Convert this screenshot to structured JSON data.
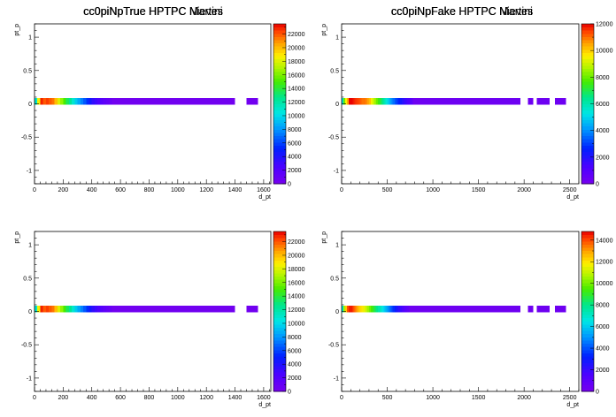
{
  "chart_data": [
    {
      "type": "heatmap",
      "title": "cc0piNpTrue HPTPC Nieves",
      "xlabel": "d_pt",
      "ylabel": "pt_p",
      "xlim": [
        0,
        1650
      ],
      "ylim": [
        -1.2,
        1.2
      ],
      "x_ticks": [
        "0",
        "200",
        "400",
        "600",
        "800",
        "1000",
        "1200",
        "1400",
        "1600"
      ],
      "y_ticks": [
        "-1",
        "-0.5",
        "0",
        "0.5",
        "1"
      ],
      "colorbar_max": 23500,
      "colorbar_ticks": [
        "0",
        "2000",
        "4000",
        "6000",
        "8000",
        "10000",
        "12000",
        "14000",
        "16000",
        "18000",
        "20000",
        "22000"
      ],
      "bin_width": 20,
      "y_band": [
        0,
        0.05
      ],
      "bins": [
        {
          "x": 0,
          "value": 11000
        },
        {
          "x": 20,
          "value": 18500
        },
        {
          "x": 40,
          "value": 23000
        },
        {
          "x": 60,
          "value": 22000
        },
        {
          "x": 80,
          "value": 22500
        },
        {
          "x": 100,
          "value": 22000
        },
        {
          "x": 120,
          "value": 21500
        },
        {
          "x": 140,
          "value": 20000
        },
        {
          "x": 160,
          "value": 18000
        },
        {
          "x": 180,
          "value": 16500
        },
        {
          "x": 200,
          "value": 15000
        },
        {
          "x": 220,
          "value": 13500
        },
        {
          "x": 240,
          "value": 12500
        },
        {
          "x": 260,
          "value": 11000
        },
        {
          "x": 280,
          "value": 9500
        },
        {
          "x": 300,
          "value": 8500
        },
        {
          "x": 320,
          "value": 7500
        },
        {
          "x": 340,
          "value": 6500
        },
        {
          "x": 360,
          "value": 5500
        },
        {
          "x": 380,
          "value": 4500
        },
        {
          "x": 400,
          "value": 3500
        },
        {
          "x": 420,
          "value": 3000
        },
        {
          "x": 440,
          "value": 2500
        },
        {
          "x": 460,
          "value": 2000
        },
        {
          "x": 480,
          "value": 1500
        },
        {
          "x": 500,
          "value": 1200
        },
        {
          "x": 520,
          "value": 900
        },
        {
          "x": 540,
          "x2": 1400,
          "value": 300
        },
        {
          "x": 1480,
          "x2": 1560,
          "value": 300
        }
      ]
    },
    {
      "type": "heatmap",
      "title": "cc0piNpFake HPTPC Nieves",
      "xlabel": "d_pt",
      "ylabel": "pt_p",
      "xlim": [
        0,
        2600
      ],
      "ylim": [
        -1.2,
        1.2
      ],
      "x_ticks": [
        "0",
        "500",
        "1000",
        "1500",
        "2000",
        "2500"
      ],
      "y_ticks": [
        "-1",
        "-0.5",
        "0",
        "0.5",
        "1"
      ],
      "colorbar_max": 12000,
      "colorbar_ticks": [
        "0",
        "2000",
        "4000",
        "6000",
        "8000",
        "10000",
        "12000"
      ],
      "bin_width": 20,
      "y_band": [
        0,
        0.05
      ],
      "bins": [
        {
          "x": 0,
          "value": 5500
        },
        {
          "x": 20,
          "value": 8000
        },
        {
          "x": 40,
          "value": 9500
        },
        {
          "x": 60,
          "value": 10500
        },
        {
          "x": 80,
          "value": 12000
        },
        {
          "x": 100,
          "value": 12000
        },
        {
          "x": 120,
          "value": 11800
        },
        {
          "x": 140,
          "value": 11600
        },
        {
          "x": 160,
          "value": 11500
        },
        {
          "x": 180,
          "value": 11400
        },
        {
          "x": 200,
          "value": 11200
        },
        {
          "x": 220,
          "value": 11000
        },
        {
          "x": 240,
          "value": 11000
        },
        {
          "x": 260,
          "value": 10800
        },
        {
          "x": 280,
          "value": 10500
        },
        {
          "x": 300,
          "value": 10200
        },
        {
          "x": 320,
          "value": 9500
        },
        {
          "x": 340,
          "value": 9000
        },
        {
          "x": 360,
          "value": 8500
        },
        {
          "x": 380,
          "value": 8000
        },
        {
          "x": 400,
          "value": 7500
        },
        {
          "x": 420,
          "value": 7000
        },
        {
          "x": 440,
          "value": 6500
        },
        {
          "x": 460,
          "value": 6000
        },
        {
          "x": 480,
          "value": 5500
        },
        {
          "x": 500,
          "value": 5000
        },
        {
          "x": 520,
          "value": 4500
        },
        {
          "x": 540,
          "value": 4000
        },
        {
          "x": 560,
          "value": 3600
        },
        {
          "x": 580,
          "value": 3200
        },
        {
          "x": 600,
          "value": 2900
        },
        {
          "x": 620,
          "value": 2600
        },
        {
          "x": 640,
          "value": 2300
        },
        {
          "x": 660,
          "value": 2000
        },
        {
          "x": 680,
          "value": 1700
        },
        {
          "x": 700,
          "value": 1500
        },
        {
          "x": 720,
          "value": 1300
        },
        {
          "x": 740,
          "value": 1100
        },
        {
          "x": 760,
          "value": 900
        },
        {
          "x": 780,
          "x2": 1960,
          "value": 300
        },
        {
          "x": 2040,
          "x2": 2100,
          "value": 300
        },
        {
          "x": 2140,
          "x2": 2280,
          "value": 300
        },
        {
          "x": 2340,
          "x2": 2460,
          "value": 300
        }
      ]
    },
    {
      "type": "heatmap",
      "title": "cc0piNpTrue HPTPC Martini",
      "xlabel": "d_pt",
      "ylabel": "pt_p",
      "xlim": [
        0,
        1650
      ],
      "ylim": [
        -1.2,
        1.2
      ],
      "x_ticks": [
        "0",
        "200",
        "400",
        "600",
        "800",
        "1000",
        "1200",
        "1400",
        "1600"
      ],
      "y_ticks": [
        "-1",
        "-0.5",
        "0",
        "0.5",
        "1"
      ],
      "colorbar_max": 23500,
      "colorbar_ticks": [
        "0",
        "2000",
        "4000",
        "6000",
        "8000",
        "10000",
        "12000",
        "14000",
        "16000",
        "18000",
        "20000",
        "22000"
      ],
      "bin_width": 20,
      "y_band": [
        0,
        0.05
      ],
      "bins": [
        {
          "x": 0,
          "value": 11000
        },
        {
          "x": 20,
          "value": 18500
        },
        {
          "x": 40,
          "value": 23000
        },
        {
          "x": 60,
          "value": 22000
        },
        {
          "x": 80,
          "value": 22500
        },
        {
          "x": 100,
          "value": 22000
        },
        {
          "x": 120,
          "value": 21500
        },
        {
          "x": 140,
          "value": 20000
        },
        {
          "x": 160,
          "value": 18000
        },
        {
          "x": 180,
          "value": 16500
        },
        {
          "x": 200,
          "value": 15000
        },
        {
          "x": 220,
          "value": 13500
        },
        {
          "x": 240,
          "value": 12500
        },
        {
          "x": 260,
          "value": 11000
        },
        {
          "x": 280,
          "value": 9500
        },
        {
          "x": 300,
          "value": 8500
        },
        {
          "x": 320,
          "value": 7500
        },
        {
          "x": 340,
          "value": 6500
        },
        {
          "x": 360,
          "value": 5500
        },
        {
          "x": 380,
          "value": 4500
        },
        {
          "x": 400,
          "value": 3500
        },
        {
          "x": 420,
          "value": 3000
        },
        {
          "x": 440,
          "value": 2500
        },
        {
          "x": 460,
          "value": 2000
        },
        {
          "x": 480,
          "value": 1500
        },
        {
          "x": 500,
          "value": 1200
        },
        {
          "x": 520,
          "value": 900
        },
        {
          "x": 540,
          "x2": 1400,
          "value": 300
        },
        {
          "x": 1480,
          "x2": 1560,
          "value": 300
        }
      ]
    },
    {
      "type": "heatmap",
      "title": "cc0piNpFake HPTPC Martini",
      "xlabel": "d_pt",
      "ylabel": "pt_p",
      "xlim": [
        0,
        2600
      ],
      "ylim": [
        -1.2,
        1.2
      ],
      "x_ticks": [
        "0",
        "500",
        "1000",
        "1500",
        "2000",
        "2500"
      ],
      "y_ticks": [
        "-1",
        "-0.5",
        "0",
        "0.5",
        "1"
      ],
      "colorbar_max": 14800,
      "colorbar_ticks": [
        "0",
        "2000",
        "4000",
        "6000",
        "8000",
        "10000",
        "12000",
        "14000"
      ],
      "bin_width": 20,
      "y_band": [
        0,
        0.05
      ],
      "bins": [
        {
          "x": 0,
          "value": 7000
        },
        {
          "x": 20,
          "value": 10500
        },
        {
          "x": 40,
          "value": 12500
        },
        {
          "x": 60,
          "value": 14000
        },
        {
          "x": 80,
          "value": 14500
        },
        {
          "x": 100,
          "value": 14500
        },
        {
          "x": 120,
          "value": 14000
        },
        {
          "x": 140,
          "value": 13500
        },
        {
          "x": 160,
          "value": 13000
        },
        {
          "x": 180,
          "value": 12500
        },
        {
          "x": 200,
          "value": 12200
        },
        {
          "x": 220,
          "value": 12000
        },
        {
          "x": 240,
          "value": 11500
        },
        {
          "x": 260,
          "value": 11000
        },
        {
          "x": 280,
          "value": 10500
        },
        {
          "x": 300,
          "value": 10000
        },
        {
          "x": 320,
          "value": 9500
        },
        {
          "x": 340,
          "value": 9000
        },
        {
          "x": 360,
          "value": 8500
        },
        {
          "x": 380,
          "value": 8000
        },
        {
          "x": 400,
          "value": 7500
        },
        {
          "x": 420,
          "value": 7000
        },
        {
          "x": 440,
          "value": 6500
        },
        {
          "x": 460,
          "value": 6000
        },
        {
          "x": 480,
          "value": 5500
        },
        {
          "x": 500,
          "value": 5000
        },
        {
          "x": 520,
          "value": 4500
        },
        {
          "x": 540,
          "value": 4000
        },
        {
          "x": 560,
          "value": 3500
        },
        {
          "x": 580,
          "value": 3000
        },
        {
          "x": 600,
          "value": 2600
        },
        {
          "x": 620,
          "value": 2200
        },
        {
          "x": 640,
          "value": 1900
        },
        {
          "x": 660,
          "value": 1600
        },
        {
          "x": 680,
          "value": 1300
        },
        {
          "x": 700,
          "value": 1100
        },
        {
          "x": 720,
          "value": 900
        },
        {
          "x": 740,
          "x2": 1960,
          "value": 300
        },
        {
          "x": 2040,
          "x2": 2100,
          "value": 300
        },
        {
          "x": 2140,
          "x2": 2280,
          "value": 300
        },
        {
          "x": 2340,
          "x2": 2460,
          "value": 300
        }
      ]
    }
  ]
}
